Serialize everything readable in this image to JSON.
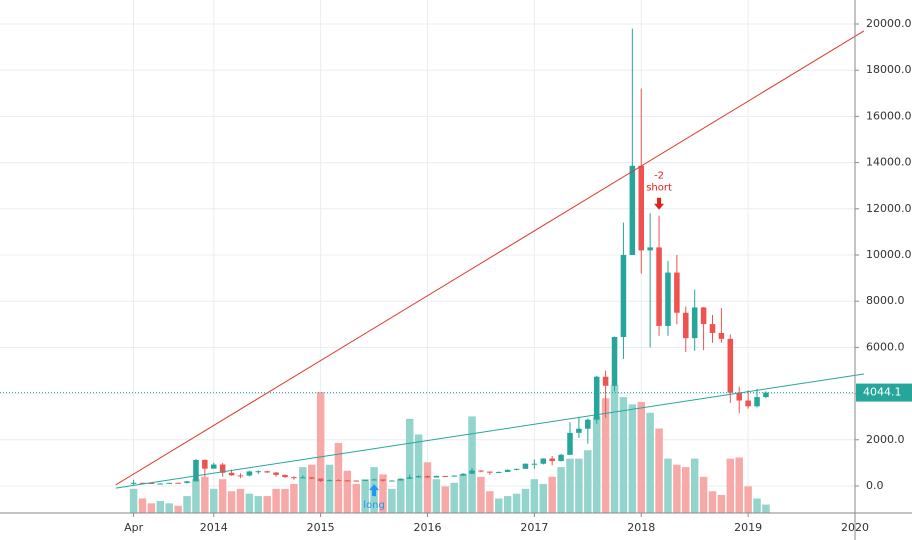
{
  "chart_data": {
    "type": "candlestick",
    "up_color": "#26a69a",
    "down_color": "#ef5350",
    "volume_up_color": "#93d5cd",
    "volume_down_color": "#f7a9a7",
    "x": [
      "2013-04",
      "2013-05",
      "2013-06",
      "2013-07",
      "2013-08",
      "2013-09",
      "2013-10",
      "2013-11",
      "2013-12",
      "2014-01",
      "2014-02",
      "2014-03",
      "2014-04",
      "2014-05",
      "2014-06",
      "2014-07",
      "2014-08",
      "2014-09",
      "2014-10",
      "2014-11",
      "2014-12",
      "2015-01",
      "2015-02",
      "2015-03",
      "2015-04",
      "2015-05",
      "2015-06",
      "2015-07",
      "2015-08",
      "2015-09",
      "2015-10",
      "2015-11",
      "2015-12",
      "2016-01",
      "2016-02",
      "2016-03",
      "2016-04",
      "2016-05",
      "2016-06",
      "2016-07",
      "2016-08",
      "2016-09",
      "2016-10",
      "2016-11",
      "2016-12",
      "2017-01",
      "2017-02",
      "2017-03",
      "2017-04",
      "2017-05",
      "2017-06",
      "2017-07",
      "2017-08",
      "2017-09",
      "2017-10",
      "2017-11",
      "2017-12",
      "2018-01",
      "2018-02",
      "2018-03",
      "2018-04",
      "2018-05",
      "2018-06",
      "2018-07",
      "2018-08",
      "2018-09",
      "2018-10",
      "2018-11",
      "2018-12",
      "2019-01",
      "2019-02",
      "2019-03"
    ],
    "open": [
      93,
      139,
      129,
      97,
      106,
      138,
      133,
      203,
      1130,
      750,
      930,
      570,
      460,
      450,
      630,
      640,
      585,
      480,
      385,
      340,
      375,
      320,
      217,
      255,
      244,
      236,
      230,
      263,
      284,
      230,
      236,
      314,
      377,
      430,
      368,
      437,
      416,
      448,
      530,
      670,
      624,
      575,
      608,
      700,
      742,
      965,
      965,
      1190,
      1080,
      1350,
      2300,
      2480,
      2870,
      4730,
      4340,
      6450,
      10000,
      13860,
      10200,
      10330,
      6930,
      9240,
      7500,
      6400,
      7730,
      7010,
      6625,
      6370,
      4040,
      3700,
      3450,
      3850
    ],
    "high": [
      266,
      140,
      129,
      111,
      140,
      146,
      220,
      1163,
      1150,
      1000,
      1000,
      715,
      550,
      660,
      680,
      660,
      600,
      490,
      420,
      460,
      390,
      320,
      290,
      300,
      260,
      250,
      268,
      320,
      285,
      245,
      330,
      500,
      465,
      460,
      445,
      440,
      470,
      550,
      780,
      680,
      625,
      630,
      720,
      755,
      975,
      1150,
      1200,
      1300,
      1400,
      2760,
      3000,
      2920,
      4770,
      5000,
      6470,
      11400,
      19800,
      17200,
      11800,
      11700,
      9750,
      10000,
      7770,
      8500,
      7750,
      7400,
      7700,
      6560,
      4300,
      4150,
      4200,
      4100
    ],
    "low": [
      50,
      79,
      88,
      65,
      100,
      113,
      105,
      200,
      400,
      750,
      400,
      440,
      340,
      420,
      520,
      560,
      400,
      350,
      275,
      320,
      300,
      170,
      200,
      235,
      200,
      225,
      215,
      252,
      185,
      225,
      236,
      300,
      345,
      350,
      365,
      395,
      410,
      440,
      530,
      600,
      480,
      570,
      605,
      680,
      740,
      750,
      930,
      900,
      1060,
      1350,
      2080,
      1830,
      2700,
      2950,
      4100,
      5500,
      10000,
      9200,
      6000,
      6500,
      6500,
      7000,
      5800,
      5850,
      5880,
      6200,
      6200,
      3600,
      3150,
      3350,
      3400,
      3800
    ],
    "close": [
      139,
      129,
      97,
      106,
      138,
      133,
      203,
      1130,
      750,
      930,
      570,
      460,
      450,
      630,
      640,
      585,
      480,
      385,
      340,
      375,
      320,
      217,
      255,
      244,
      236,
      230,
      263,
      284,
      230,
      236,
      314,
      377,
      430,
      368,
      437,
      416,
      448,
      530,
      670,
      624,
      575,
      608,
      700,
      742,
      965,
      965,
      1190,
      1080,
      1350,
      2300,
      2480,
      2870,
      4730,
      4340,
      6450,
      10000,
      13860,
      10200,
      10330,
      6930,
      9240,
      7500,
      6400,
      7730,
      7010,
      6625,
      6370,
      4040,
      3700,
      3450,
      3850,
      4044.1
    ],
    "volume": [
      20,
      12,
      8,
      10,
      8,
      6,
      14,
      28,
      30,
      20,
      28,
      18,
      20,
      16,
      14,
      14,
      20,
      20,
      24,
      38,
      40,
      100,
      40,
      58,
      35,
      24,
      28,
      38,
      32,
      20,
      28,
      78,
      65,
      42,
      28,
      22,
      25,
      32,
      80,
      30,
      18,
      12,
      14,
      16,
      20,
      28,
      24,
      30,
      38,
      45,
      45,
      52,
      80,
      95,
      106,
      96,
      90,
      92,
      83,
      70,
      45,
      40,
      38,
      45,
      30,
      18,
      15,
      45,
      46,
      22,
      12,
      7
    ],
    "last_price": {
      "value": 4044.1,
      "label": "4044.1"
    },
    "trend_lines": [
      {
        "color": "#e0392b",
        "x": [
          "2013-02",
          "2020-02"
        ],
        "y": [
          50,
          19700
        ]
      },
      {
        "color": "#26a69a",
        "x": [
          "2013-02",
          "2020-02"
        ],
        "y": [
          -90,
          4850
        ]
      }
    ],
    "signals": [
      {
        "x": "2018-03",
        "label": "-2",
        "text": "short",
        "color": "#e0201b"
      },
      {
        "x": "2015-07",
        "text": "long",
        "color": "#2196f3"
      }
    ],
    "xlim": [
      "2012-01",
      "2020-01"
    ],
    "xticks": [
      {
        "value": "2013-04",
        "label": "Apr"
      },
      {
        "value": "2014-01",
        "label": "2014"
      },
      {
        "value": "2015-01",
        "label": "2015"
      },
      {
        "value": "2016-01",
        "label": "2016"
      },
      {
        "value": "2017-01",
        "label": "2017"
      },
      {
        "value": "2018-01",
        "label": "2018"
      },
      {
        "value": "2019-01",
        "label": "2019"
      },
      {
        "value": "2020-01",
        "label": "2020"
      }
    ],
    "ylim": [
      -1169,
      21039
    ],
    "yticks": [
      {
        "value": 0,
        "label": "0.0"
      },
      {
        "value": 2000,
        "label": "2000.0"
      },
      {
        "value": 4000,
        "label": "4000.0"
      },
      {
        "value": 6000,
        "label": "6000.0"
      },
      {
        "value": 8000,
        "label": "8000.0"
      },
      {
        "value": 10000,
        "label": "10000.0"
      },
      {
        "value": 12000,
        "label": "12000.0"
      },
      {
        "value": 14000,
        "label": "14000.0"
      },
      {
        "value": 16000,
        "label": "16000.0"
      },
      {
        "value": 18000,
        "label": "18000.0"
      },
      {
        "value": 20000,
        "label": "20000.0"
      }
    ],
    "grid": true
  }
}
